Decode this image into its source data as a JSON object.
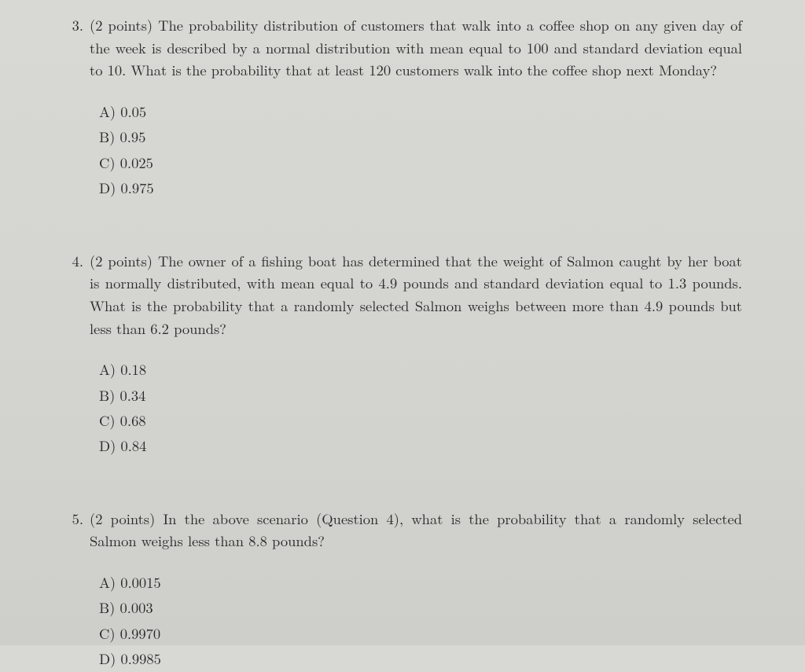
{
  "background_color": "#d5d5d1",
  "text_color": "#2a2a2a",
  "font_family": "Computer Modern, serif",
  "body_fontsize": 18.5,
  "questions": [
    {
      "number": "3.",
      "points": "(2 points)",
      "text": "The probability distribution of customers that walk into a coffee shop on any given day of the week is described by a normal distribution with mean equal to 100 and standard deviation equal to 10. What is the probability that at least 120 customers walk into the coffee shop next Monday?",
      "options": [
        {
          "label": "A)",
          "value": "0.05"
        },
        {
          "label": "B)",
          "value": "0.95"
        },
        {
          "label": "C)",
          "value": "0.025"
        },
        {
          "label": "D)",
          "value": "0.975"
        }
      ]
    },
    {
      "number": "4.",
      "points": "(2 points)",
      "text": "The owner of a fishing boat has determined that the weight of Salmon caught by her boat is normally distributed, with mean equal to 4.9 pounds and standard deviation equal to 1.3 pounds. What is the probability that a randomly selected Salmon weighs between more than 4.9 pounds but less than 6.2 pounds?",
      "options": [
        {
          "label": "A)",
          "value": "0.18"
        },
        {
          "label": "B)",
          "value": "0.34"
        },
        {
          "label": "C)",
          "value": "0.68"
        },
        {
          "label": "D)",
          "value": "0.84"
        }
      ]
    },
    {
      "number": "5.",
      "points": "(2 points)",
      "text": "In the above scenario (Question 4), what is the probability that a randomly selected Salmon weighs less than 8.8 pounds?",
      "options": [
        {
          "label": "A)",
          "value": "0.0015"
        },
        {
          "label": "B)",
          "value": "0.003"
        },
        {
          "label": "C)",
          "value": "0.9970"
        },
        {
          "label": "D)",
          "value": "0.9985"
        }
      ]
    }
  ]
}
